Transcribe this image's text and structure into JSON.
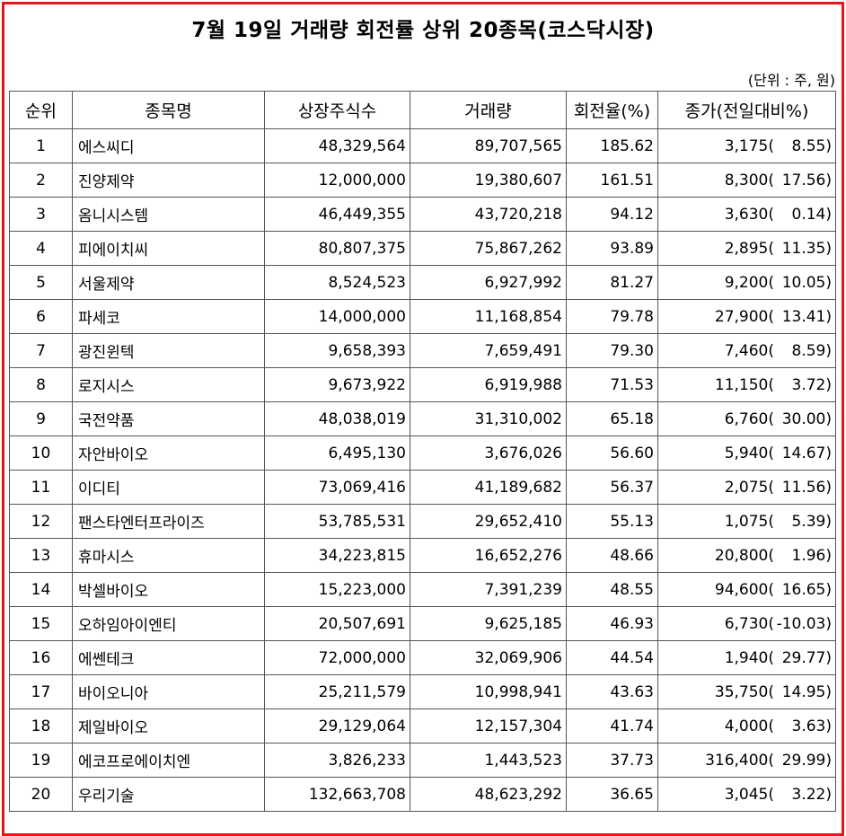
{
  "title": "7월 19일 거래량 회전률 상위 20종목(코스닥시장)",
  "unit_note": "(단위 : 주, 원)",
  "colors": {
    "border_accent": "#e8141c"
  },
  "table": {
    "headers": [
      "순위",
      "종목명",
      "상장주식수",
      "거래량",
      "회전율(%)",
      "종가(전일대비%)"
    ],
    "rows": [
      {
        "rank": "1",
        "name": "에스씨디",
        "listed": "48,329,564",
        "volume": "89,707,565",
        "turnover": "185.62",
        "close": "3,175(",
        "change": "8.55)"
      },
      {
        "rank": "2",
        "name": "진양제약",
        "listed": "12,000,000",
        "volume": "19,380,607",
        "turnover": "161.51",
        "close": "8,300(",
        "change": "17.56)"
      },
      {
        "rank": "3",
        "name": "옴니시스템",
        "listed": "46,449,355",
        "volume": "43,720,218",
        "turnover": "94.12",
        "close": "3,630(",
        "change": "0.14)"
      },
      {
        "rank": "4",
        "name": "피에이치씨",
        "listed": "80,807,375",
        "volume": "75,867,262",
        "turnover": "93.89",
        "close": "2,895(",
        "change": "11.35)"
      },
      {
        "rank": "5",
        "name": "서울제약",
        "listed": "8,524,523",
        "volume": "6,927,992",
        "turnover": "81.27",
        "close": "9,200(",
        "change": "10.05)"
      },
      {
        "rank": "6",
        "name": "파세코",
        "listed": "14,000,000",
        "volume": "11,168,854",
        "turnover": "79.78",
        "close": "27,900(",
        "change": "13.41)"
      },
      {
        "rank": "7",
        "name": "광진윈텍",
        "listed": "9,658,393",
        "volume": "7,659,491",
        "turnover": "79.30",
        "close": "7,460(",
        "change": "8.59)"
      },
      {
        "rank": "8",
        "name": "로지시스",
        "listed": "9,673,922",
        "volume": "6,919,988",
        "turnover": "71.53",
        "close": "11,150(",
        "change": "3.72)"
      },
      {
        "rank": "9",
        "name": "국전약품",
        "listed": "48,038,019",
        "volume": "31,310,002",
        "turnover": "65.18",
        "close": "6,760(",
        "change": "30.00)"
      },
      {
        "rank": "10",
        "name": "자안바이오",
        "listed": "6,495,130",
        "volume": "3,676,026",
        "turnover": "56.60",
        "close": "5,940(",
        "change": "14.67)"
      },
      {
        "rank": "11",
        "name": "이디티",
        "listed": "73,069,416",
        "volume": "41,189,682",
        "turnover": "56.37",
        "close": "2,075(",
        "change": "11.56)"
      },
      {
        "rank": "12",
        "name": "팬스타엔터프라이즈",
        "listed": "53,785,531",
        "volume": "29,652,410",
        "turnover": "55.13",
        "close": "1,075(",
        "change": "5.39)"
      },
      {
        "rank": "13",
        "name": "휴마시스",
        "listed": "34,223,815",
        "volume": "16,652,276",
        "turnover": "48.66",
        "close": "20,800(",
        "change": "1.96)"
      },
      {
        "rank": "14",
        "name": "박셀바이오",
        "listed": "15,223,000",
        "volume": "7,391,239",
        "turnover": "48.55",
        "close": "94,600(",
        "change": "16.65)"
      },
      {
        "rank": "15",
        "name": "오하임아이엔티",
        "listed": "20,507,691",
        "volume": "9,625,185",
        "turnover": "46.93",
        "close": "6,730(",
        "change": "-10.03)"
      },
      {
        "rank": "16",
        "name": "에쎈테크",
        "listed": "72,000,000",
        "volume": "32,069,906",
        "turnover": "44.54",
        "close": "1,940(",
        "change": "29.77)"
      },
      {
        "rank": "17",
        "name": "바이오니아",
        "listed": "25,211,579",
        "volume": "10,998,941",
        "turnover": "43.63",
        "close": "35,750(",
        "change": "14.95)"
      },
      {
        "rank": "18",
        "name": "제일바이오",
        "listed": "29,129,064",
        "volume": "12,157,304",
        "turnover": "41.74",
        "close": "4,000(",
        "change": "3.63)"
      },
      {
        "rank": "19",
        "name": "에코프로에이치엔",
        "listed": "3,826,233",
        "volume": "1,443,523",
        "turnover": "37.73",
        "close": "316,400(",
        "change": "29.99)"
      },
      {
        "rank": "20",
        "name": "우리기술",
        "listed": "132,663,708",
        "volume": "48,623,292",
        "turnover": "36.65",
        "close": "3,045(",
        "change": "3.22)"
      }
    ]
  }
}
